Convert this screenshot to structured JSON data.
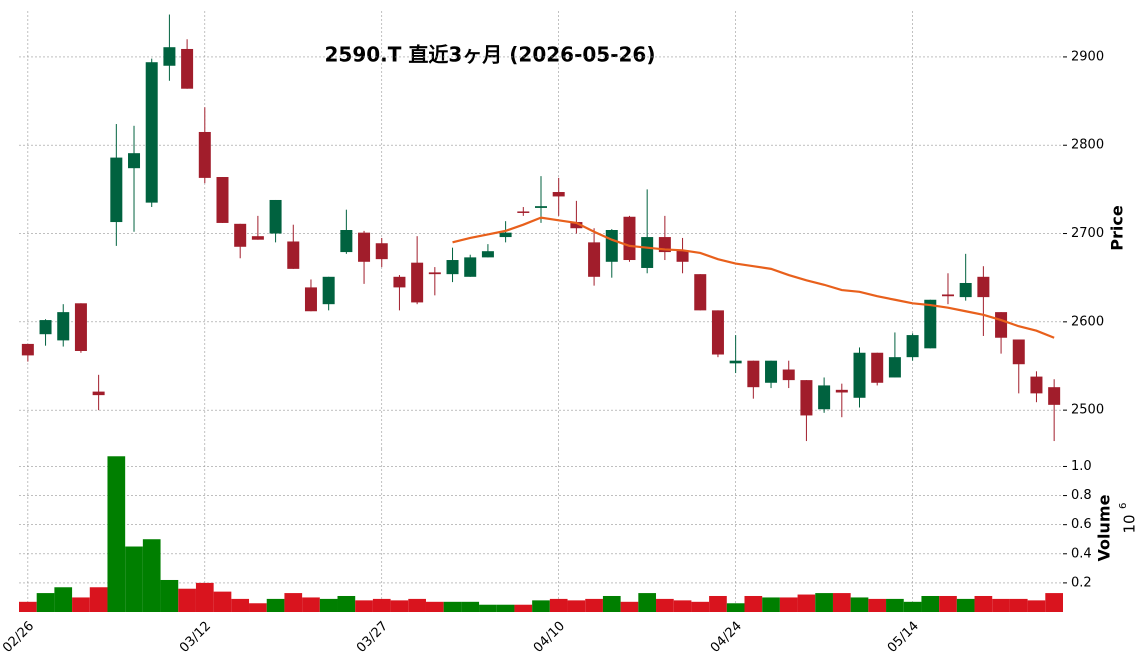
{
  "chart_data": [
    {
      "type": "candlestick",
      "title": "2590.T  直近3ヶ月  (2026-05-26)",
      "y_label": "Price",
      "x": [
        "02/26",
        null,
        null,
        null,
        null,
        null,
        null,
        null,
        null,
        null,
        "03/12",
        null,
        null,
        null,
        null,
        null,
        null,
        null,
        null,
        null,
        "03/27",
        null,
        null,
        null,
        null,
        null,
        null,
        null,
        null,
        null,
        "04/10",
        null,
        null,
        null,
        null,
        null,
        null,
        null,
        null,
        null,
        "04/24",
        null,
        null,
        null,
        null,
        null,
        null,
        null,
        null,
        null,
        "05/14",
        null,
        null,
        null,
        null,
        null,
        null,
        null,
        null
      ],
      "open": [
        2575,
        2586,
        2579,
        2621,
        2521,
        2713,
        2774,
        2735,
        2890,
        2909,
        2815,
        2764,
        2711,
        2697,
        2700,
        2691,
        2639,
        2620,
        2679,
        2701,
        2689,
        2651,
        2667,
        2656,
        2654,
        2651,
        2673,
        2696,
        2725,
        2729,
        2747,
        2713,
        2690,
        2668,
        2719,
        2661,
        2696,
        2681,
        2654,
        2613,
        2553,
        2556,
        2531,
        2546,
        2534,
        2501,
        2523,
        2514,
        2565,
        2537,
        2560,
        2570,
        2631,
        2628,
        2651,
        2611,
        2580,
        2538,
        2526
      ],
      "high": [
        2575,
        2603,
        2620,
        2621,
        2540,
        2824,
        2822,
        2898,
        2948,
        2920,
        2843,
        2764,
        2711,
        2720,
        2738,
        2710,
        2648,
        2651,
        2727,
        2703,
        2695,
        2653,
        2697,
        2662,
        2684,
        2676,
        2688,
        2714,
        2730,
        2765,
        2763,
        2737,
        2706,
        2705,
        2720,
        2750,
        2720,
        2695,
        2654,
        2613,
        2585,
        2556,
        2556,
        2556,
        2534,
        2537,
        2530,
        2571,
        2565,
        2588,
        2587,
        2625,
        2655,
        2677,
        2663,
        2611,
        2580,
        2544,
        2535
      ],
      "low": [
        2555,
        2573,
        2572,
        2565,
        2500,
        2686,
        2702,
        2730,
        2873,
        2864,
        2757,
        2712,
        2672,
        2693,
        2690,
        2660,
        2612,
        2613,
        2677,
        2643,
        2662,
        2613,
        2620,
        2630,
        2645,
        2651,
        2673,
        2690,
        2720,
        2712,
        2720,
        2700,
        2641,
        2650,
        2668,
        2655,
        2670,
        2655,
        2613,
        2560,
        2542,
        2513,
        2525,
        2525,
        2465,
        2497,
        2492,
        2503,
        2528,
        2537,
        2556,
        2570,
        2620,
        2624,
        2584,
        2564,
        2519,
        2509,
        2465
      ],
      "close": [
        2562,
        2602,
        2611,
        2567,
        2517,
        2786,
        2791,
        2894,
        2911,
        2864,
        2763,
        2712,
        2685,
        2693,
        2738,
        2660,
        2612,
        2651,
        2704,
        2668,
        2671,
        2639,
        2622,
        2654,
        2670,
        2673,
        2680,
        2701,
        2724,
        2731,
        2742,
        2706,
        2651,
        2704,
        2670,
        2696,
        2679,
        2668,
        2613,
        2563,
        2556,
        2526,
        2556,
        2534,
        2494,
        2528,
        2520,
        2565,
        2531,
        2560,
        2585,
        2625,
        2629,
        2644,
        2628,
        2582,
        2552,
        2519,
        2506
      ],
      "up_color": "#00623f",
      "down_color": "#a11d2b",
      "series": [
        {
          "name": "MA",
          "color": "#e8601c",
          "values": [
            null,
            null,
            null,
            null,
            null,
            null,
            null,
            null,
            null,
            null,
            null,
            null,
            null,
            null,
            null,
            null,
            null,
            null,
            null,
            null,
            null,
            null,
            null,
            null,
            2690,
            2695,
            2699,
            2703,
            2710,
            2718,
            2715,
            2712,
            2702,
            2693,
            2686,
            2684,
            2682,
            2681,
            2678,
            2671,
            2666,
            2663,
            2660,
            2653,
            2647,
            2642,
            2636,
            2634,
            2629,
            2625,
            2621,
            2619,
            2616,
            2612,
            2608,
            2602,
            2595,
            2590,
            2582
          ]
        }
      ],
      "ylim": [
        2456,
        2952
      ],
      "yticks": [
        2500,
        2600,
        2700,
        2800,
        2900
      ],
      "grid": true
    },
    {
      "type": "bar",
      "y_label": "Volume",
      "scale_base": "10",
      "scale_exponent": "6",
      "values": [
        0.07,
        0.13,
        0.17,
        0.1,
        0.17,
        1.07,
        0.45,
        0.5,
        0.22,
        0.16,
        0.2,
        0.14,
        0.09,
        0.06,
        0.09,
        0.13,
        0.1,
        0.09,
        0.11,
        0.08,
        0.09,
        0.08,
        0.09,
        0.07,
        0.07,
        0.07,
        0.05,
        0.05,
        0.05,
        0.08,
        0.09,
        0.08,
        0.09,
        0.11,
        0.07,
        0.13,
        0.09,
        0.08,
        0.07,
        0.11,
        0.06,
        0.11,
        0.1,
        0.1,
        0.12,
        0.13,
        0.13,
        0.1,
        0.09,
        0.09,
        0.07,
        0.11,
        0.11,
        0.09,
        0.11,
        0.09,
        0.09,
        0.08,
        0.13
      ],
      "up_color": "#007f00",
      "down_color": "#d9141e",
      "ylim": [
        0,
        1.12
      ],
      "yticks": [
        0.2,
        0.4,
        0.6,
        0.8,
        {
          "value": 1,
          "label": "1.0"
        }
      ],
      "grid": true
    }
  ]
}
